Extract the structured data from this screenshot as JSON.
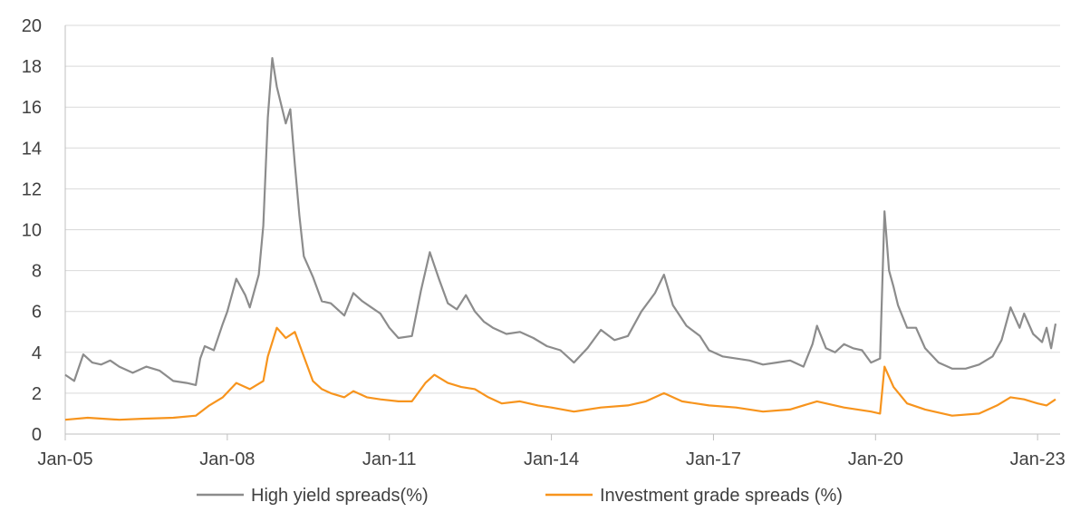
{
  "chart_data": {
    "type": "line",
    "title": "",
    "xlabel": "",
    "ylabel": "",
    "ylim": [
      0,
      20
    ],
    "yticks": [
      "0",
      "2",
      "4",
      "6",
      "8",
      "10",
      "12",
      "14",
      "16",
      "18",
      "20"
    ],
    "xlim": [
      "2005-01",
      "2023-06"
    ],
    "xticks": [
      {
        "label": "Jan-05",
        "date": "2005-01"
      },
      {
        "label": "Jan-08",
        "date": "2008-01"
      },
      {
        "label": "Jan-11",
        "date": "2011-01"
      },
      {
        "label": "Jan-14",
        "date": "2014-01"
      },
      {
        "label": "Jan-17",
        "date": "2017-01"
      },
      {
        "label": "Jan-20",
        "date": "2020-01"
      },
      {
        "label": "Jan-23",
        "date": "2023-01"
      }
    ],
    "grid": "horizontal",
    "legend_position": "bottom",
    "series": [
      {
        "name": "High yield spreads(%)",
        "color": "#8c8c8c",
        "points": [
          [
            "2005-01",
            2.9
          ],
          [
            "2005-03",
            2.6
          ],
          [
            "2005-05",
            3.9
          ],
          [
            "2005-07",
            3.5
          ],
          [
            "2005-09",
            3.4
          ],
          [
            "2005-11",
            3.6
          ],
          [
            "2006-01",
            3.3
          ],
          [
            "2006-04",
            3.0
          ],
          [
            "2006-07",
            3.3
          ],
          [
            "2006-10",
            3.1
          ],
          [
            "2007-01",
            2.6
          ],
          [
            "2007-04",
            2.5
          ],
          [
            "2007-06",
            2.4
          ],
          [
            "2007-07",
            3.7
          ],
          [
            "2007-08",
            4.3
          ],
          [
            "2007-10",
            4.1
          ],
          [
            "2007-12",
            5.4
          ],
          [
            "2008-01",
            6.0
          ],
          [
            "2008-03",
            7.6
          ],
          [
            "2008-05",
            6.8
          ],
          [
            "2008-06",
            6.2
          ],
          [
            "2008-08",
            7.8
          ],
          [
            "2008-09",
            10.2
          ],
          [
            "2008-10",
            15.5
          ],
          [
            "2008-11",
            18.4
          ],
          [
            "2008-12",
            17.0
          ],
          [
            "2009-02",
            15.2
          ],
          [
            "2009-03",
            15.9
          ],
          [
            "2009-04",
            13.2
          ],
          [
            "2009-05",
            10.7
          ],
          [
            "2009-06",
            8.7
          ],
          [
            "2009-08",
            7.7
          ],
          [
            "2009-10",
            6.5
          ],
          [
            "2009-12",
            6.4
          ],
          [
            "2010-01",
            6.2
          ],
          [
            "2010-03",
            5.8
          ],
          [
            "2010-05",
            6.9
          ],
          [
            "2010-07",
            6.5
          ],
          [
            "2010-09",
            6.2
          ],
          [
            "2010-11",
            5.9
          ],
          [
            "2011-01",
            5.2
          ],
          [
            "2011-03",
            4.7
          ],
          [
            "2011-06",
            4.8
          ],
          [
            "2011-08",
            7.0
          ],
          [
            "2011-10",
            8.9
          ],
          [
            "2011-12",
            7.6
          ],
          [
            "2012-02",
            6.4
          ],
          [
            "2012-04",
            6.1
          ],
          [
            "2012-06",
            6.8
          ],
          [
            "2012-08",
            6.0
          ],
          [
            "2012-10",
            5.5
          ],
          [
            "2012-12",
            5.2
          ],
          [
            "2013-03",
            4.9
          ],
          [
            "2013-06",
            5.0
          ],
          [
            "2013-09",
            4.7
          ],
          [
            "2013-12",
            4.3
          ],
          [
            "2014-03",
            4.1
          ],
          [
            "2014-06",
            3.5
          ],
          [
            "2014-09",
            4.2
          ],
          [
            "2014-12",
            5.1
          ],
          [
            "2015-03",
            4.6
          ],
          [
            "2015-06",
            4.8
          ],
          [
            "2015-09",
            6.0
          ],
          [
            "2015-12",
            6.9
          ],
          [
            "2016-02",
            7.8
          ],
          [
            "2016-04",
            6.3
          ],
          [
            "2016-07",
            5.3
          ],
          [
            "2016-10",
            4.8
          ],
          [
            "2016-12",
            4.1
          ],
          [
            "2017-03",
            3.8
          ],
          [
            "2017-06",
            3.7
          ],
          [
            "2017-09",
            3.6
          ],
          [
            "2017-12",
            3.4
          ],
          [
            "2018-03",
            3.5
          ],
          [
            "2018-06",
            3.6
          ],
          [
            "2018-09",
            3.3
          ],
          [
            "2018-11",
            4.4
          ],
          [
            "2018-12",
            5.3
          ],
          [
            "2019-02",
            4.2
          ],
          [
            "2019-04",
            4.0
          ],
          [
            "2019-06",
            4.4
          ],
          [
            "2019-08",
            4.2
          ],
          [
            "2019-10",
            4.1
          ],
          [
            "2019-12",
            3.5
          ],
          [
            "2020-02",
            3.7
          ],
          [
            "2020-03",
            10.9
          ],
          [
            "2020-04",
            8.0
          ],
          [
            "2020-05",
            7.2
          ],
          [
            "2020-06",
            6.3
          ],
          [
            "2020-08",
            5.2
          ],
          [
            "2020-10",
            5.2
          ],
          [
            "2020-12",
            4.2
          ],
          [
            "2021-03",
            3.5
          ],
          [
            "2021-06",
            3.2
          ],
          [
            "2021-09",
            3.2
          ],
          [
            "2021-12",
            3.4
          ],
          [
            "2022-03",
            3.8
          ],
          [
            "2022-05",
            4.6
          ],
          [
            "2022-07",
            6.2
          ],
          [
            "2022-09",
            5.2
          ],
          [
            "2022-10",
            5.9
          ],
          [
            "2022-12",
            4.9
          ],
          [
            "2023-02",
            4.5
          ],
          [
            "2023-03",
            5.2
          ],
          [
            "2023-04",
            4.2
          ],
          [
            "2023-05",
            5.4
          ]
        ]
      },
      {
        "name": "Investment grade spreads (%)",
        "color": "#f7941d",
        "points": [
          [
            "2005-01",
            0.7
          ],
          [
            "2005-06",
            0.8
          ],
          [
            "2006-01",
            0.7
          ],
          [
            "2006-06",
            0.75
          ],
          [
            "2007-01",
            0.8
          ],
          [
            "2007-06",
            0.9
          ],
          [
            "2007-09",
            1.4
          ],
          [
            "2007-12",
            1.8
          ],
          [
            "2008-03",
            2.5
          ],
          [
            "2008-06",
            2.2
          ],
          [
            "2008-09",
            2.6
          ],
          [
            "2008-10",
            3.8
          ],
          [
            "2008-12",
            5.2
          ],
          [
            "2009-02",
            4.7
          ],
          [
            "2009-04",
            5.0
          ],
          [
            "2009-06",
            3.8
          ],
          [
            "2009-08",
            2.6
          ],
          [
            "2009-10",
            2.2
          ],
          [
            "2009-12",
            2.0
          ],
          [
            "2010-03",
            1.8
          ],
          [
            "2010-05",
            2.1
          ],
          [
            "2010-08",
            1.8
          ],
          [
            "2010-11",
            1.7
          ],
          [
            "2011-03",
            1.6
          ],
          [
            "2011-06",
            1.6
          ],
          [
            "2011-09",
            2.5
          ],
          [
            "2011-11",
            2.9
          ],
          [
            "2012-02",
            2.5
          ],
          [
            "2012-05",
            2.3
          ],
          [
            "2012-08",
            2.2
          ],
          [
            "2012-11",
            1.8
          ],
          [
            "2013-02",
            1.5
          ],
          [
            "2013-06",
            1.6
          ],
          [
            "2013-10",
            1.4
          ],
          [
            "2014-01",
            1.3
          ],
          [
            "2014-06",
            1.1
          ],
          [
            "2014-12",
            1.3
          ],
          [
            "2015-06",
            1.4
          ],
          [
            "2015-10",
            1.6
          ],
          [
            "2016-02",
            2.0
          ],
          [
            "2016-06",
            1.6
          ],
          [
            "2016-12",
            1.4
          ],
          [
            "2017-06",
            1.3
          ],
          [
            "2017-12",
            1.1
          ],
          [
            "2018-06",
            1.2
          ],
          [
            "2018-12",
            1.6
          ],
          [
            "2019-06",
            1.3
          ],
          [
            "2019-12",
            1.1
          ],
          [
            "2020-02",
            1.0
          ],
          [
            "2020-03",
            3.3
          ],
          [
            "2020-05",
            2.3
          ],
          [
            "2020-08",
            1.5
          ],
          [
            "2020-12",
            1.2
          ],
          [
            "2021-06",
            0.9
          ],
          [
            "2021-12",
            1.0
          ],
          [
            "2022-04",
            1.4
          ],
          [
            "2022-07",
            1.8
          ],
          [
            "2022-10",
            1.7
          ],
          [
            "2023-01",
            1.5
          ],
          [
            "2023-03",
            1.4
          ],
          [
            "2023-05",
            1.7
          ]
        ]
      }
    ]
  }
}
